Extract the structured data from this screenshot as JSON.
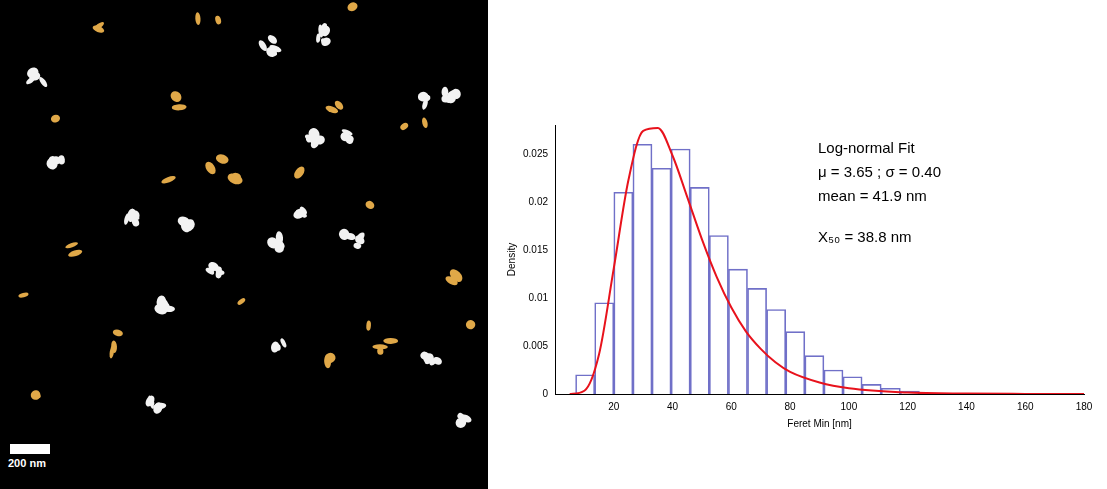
{
  "chart_data": {
    "type": "histogram",
    "xlabel": "Feret Min [nm]",
    "ylabel": "Density",
    "bins": [
      7,
      13.5,
      20,
      26.5,
      33,
      39.5,
      46,
      52.5,
      59,
      65.5,
      72,
      78.5,
      85,
      91.5,
      98,
      104.5,
      111,
      117.5,
      124
    ],
    "values": [
      0.002,
      0.0095,
      0.021,
      0.026,
      0.0235,
      0.0255,
      0.0215,
      0.0165,
      0.013,
      0.011,
      0.0088,
      0.0065,
      0.004,
      0.0025,
      0.0018,
      0.001,
      0.0006,
      0.0003
    ],
    "color": "#7070c8",
    "fit": {
      "type": "line",
      "color": "#e8121c",
      "x": [
        5,
        10,
        15,
        20,
        25,
        30,
        35,
        40,
        45,
        50,
        55,
        60,
        65,
        70,
        75,
        80,
        90,
        100,
        120,
        140,
        160,
        180
      ],
      "values": [
        0,
        0.00034,
        0.00416,
        0.0131,
        0.0223,
        0.0274,
        0.0277,
        0.0248,
        0.0205,
        0.0161,
        0.0122,
        0.009,
        0.0065,
        0.0047,
        0.0033,
        0.0023,
        0.0012,
        0.0006,
        0.00015,
        4e-05,
        1e-05,
        0
      ]
    },
    "xlim": [
      0,
      180
    ],
    "xticks": [
      20,
      40,
      60,
      80,
      100,
      120,
      140,
      160,
      180
    ],
    "ylim": [
      0,
      0.028
    ],
    "yticks": [
      0,
      0.005,
      0.01,
      0.015,
      0.02,
      0.025
    ],
    "grid": false,
    "annotations": [
      "Log-normal Fit",
      "μ = 3.65 ; σ = 0.40",
      "mean = 41.9 nm",
      "X₅₀ = 38.8 nm"
    ]
  },
  "image": {
    "scale_bar": "200 nm"
  }
}
